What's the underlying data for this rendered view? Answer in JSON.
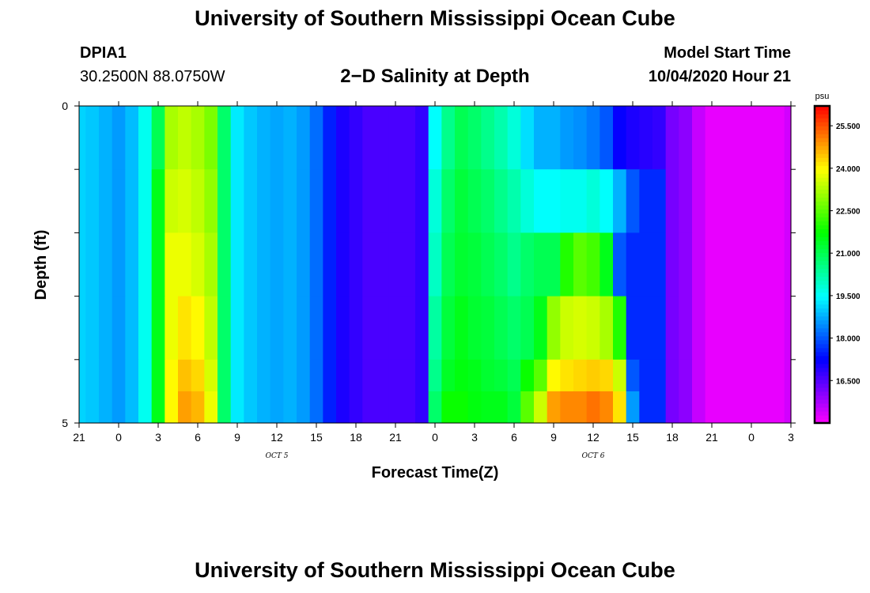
{
  "header": {
    "title": "University of Southern Mississippi Ocean Cube",
    "station_id": "DPIA1",
    "station_coords": "30.2500N 88.0750W",
    "model_start_label": "Model Start Time",
    "model_start_value": "10/04/2020 Hour 21"
  },
  "footer": {
    "title": "University of Southern Mississippi Ocean Cube"
  },
  "chart_data": {
    "type": "heatmap",
    "title": "2−D Salinity at Depth",
    "xlabel": "Forecast Time(Z)",
    "ylabel": "Depth (ft)",
    "xlim": [
      0,
      54
    ],
    "ylim": [
      0,
      5
    ],
    "x_ticks": [
      0,
      3,
      6,
      9,
      12,
      15,
      18,
      21,
      24,
      27,
      30,
      33,
      36,
      39,
      42,
      45,
      48,
      51,
      54
    ],
    "x_tick_labels": [
      "21",
      "0",
      "3",
      "6",
      "9",
      "12",
      "15",
      "18",
      "21",
      "0",
      "3",
      "6",
      "9",
      "12",
      "15",
      "18",
      "21",
      "0",
      "3"
    ],
    "day_labels": [
      {
        "x": 15,
        "text": "OCT 5"
      },
      {
        "x": 39,
        "text": "OCT 6"
      }
    ],
    "y_ticks": [
      0,
      1,
      2,
      3,
      4,
      5
    ],
    "y_tick_labels": [
      "0",
      "",
      "",
      "",
      "",
      "5"
    ],
    "colorbar": {
      "unit": "psu",
      "min": 15.0,
      "max": 26.2,
      "tick_values": [
        16.5,
        18.0,
        19.5,
        21.0,
        22.5,
        24.0,
        25.5
      ],
      "tick_labels": [
        "16.500",
        "18.000",
        "19.500",
        "21.000",
        "22.500",
        "24.000",
        "25.500"
      ]
    },
    "x": [
      0,
      1,
      2,
      3,
      4,
      5,
      6,
      7,
      8,
      9,
      10,
      11,
      12,
      13,
      14,
      15,
      16,
      17,
      18,
      19,
      20,
      21,
      22,
      23,
      24,
      25,
      26,
      27,
      28,
      29,
      30,
      31,
      32,
      33,
      34,
      35,
      36,
      37,
      38,
      39,
      40,
      41,
      42,
      43,
      44,
      45,
      46,
      47,
      48,
      49,
      50,
      51,
      52,
      53,
      54
    ],
    "layers": [
      {
        "depth_top": 0,
        "depth_bottom": 1,
        "values": [
          19.1,
          19.0,
          18.8,
          18.6,
          18.9,
          19.6,
          21.0,
          23.2,
          23.4,
          23.2,
          22.8,
          20.8,
          19.3,
          19.0,
          18.8,
          18.7,
          18.8,
          18.6,
          18.2,
          17.5,
          17.0,
          16.8,
          16.6,
          16.6,
          16.6,
          16.6,
          16.8,
          19.5,
          20.5,
          21.0,
          20.8,
          20.5,
          20.2,
          19.8,
          19.2,
          18.8,
          18.8,
          18.6,
          18.5,
          18.3,
          18.0,
          17.2,
          17.0,
          16.9,
          16.8,
          16.2,
          16.0,
          15.5,
          15.2,
          15.2,
          15.2,
          15.2,
          15.2,
          15.2,
          15.4
        ]
      },
      {
        "depth_top": 1,
        "depth_bottom": 2,
        "values": [
          19.1,
          19.0,
          18.8,
          18.6,
          18.9,
          19.6,
          21.5,
          23.5,
          23.6,
          23.4,
          23.0,
          20.8,
          19.3,
          19.0,
          18.8,
          18.7,
          18.8,
          18.6,
          18.2,
          17.5,
          17.0,
          16.8,
          16.6,
          16.6,
          16.6,
          16.6,
          16.8,
          19.8,
          20.8,
          21.2,
          21.0,
          20.8,
          20.5,
          20.2,
          19.8,
          19.5,
          19.5,
          19.6,
          19.6,
          19.8,
          19.5,
          18.8,
          18.0,
          17.6,
          17.6,
          16.2,
          16.0,
          15.5,
          15.2,
          15.2,
          15.2,
          15.2,
          15.2,
          15.2,
          15.4
        ]
      },
      {
        "depth_top": 2,
        "depth_bottom": 3,
        "values": [
          19.1,
          19.0,
          18.8,
          18.6,
          18.9,
          19.6,
          21.5,
          23.8,
          23.8,
          23.6,
          23.2,
          20.8,
          19.3,
          19.0,
          18.8,
          18.7,
          18.8,
          18.6,
          18.2,
          17.5,
          17.0,
          16.8,
          16.6,
          16.6,
          16.6,
          16.6,
          16.8,
          20.0,
          21.0,
          21.3,
          21.2,
          21.0,
          20.8,
          20.5,
          20.8,
          21.0,
          21.0,
          22.0,
          22.5,
          22.3,
          21.5,
          18.0,
          17.6,
          17.6,
          17.6,
          16.2,
          16.0,
          15.5,
          15.2,
          15.2,
          15.2,
          15.2,
          15.2,
          15.2,
          15.4
        ]
      },
      {
        "depth_top": 3,
        "depth_bottom": 4,
        "values": [
          19.1,
          19.0,
          18.8,
          18.6,
          18.9,
          19.6,
          21.5,
          23.8,
          24.2,
          24.0,
          23.4,
          20.8,
          19.3,
          19.0,
          18.8,
          18.7,
          18.8,
          18.6,
          18.2,
          17.5,
          17.0,
          16.8,
          16.6,
          16.6,
          16.6,
          16.6,
          16.8,
          20.3,
          21.2,
          21.5,
          21.3,
          21.2,
          21.0,
          20.8,
          21.0,
          21.5,
          23.0,
          23.5,
          23.6,
          23.5,
          23.2,
          22.0,
          17.6,
          17.6,
          17.6,
          16.2,
          16.0,
          15.5,
          15.2,
          15.2,
          15.2,
          15.2,
          15.2,
          15.2,
          15.4
        ]
      },
      {
        "depth_top": 4,
        "depth_bottom": 4.5,
        "values": [
          19.1,
          19.0,
          18.8,
          18.6,
          18.9,
          19.6,
          21.5,
          24.0,
          24.5,
          24.3,
          23.6,
          20.8,
          19.3,
          19.0,
          18.8,
          18.7,
          18.8,
          18.6,
          18.2,
          17.5,
          17.0,
          16.8,
          16.6,
          16.6,
          16.6,
          16.6,
          16.8,
          20.5,
          21.4,
          21.6,
          21.5,
          21.3,
          21.2,
          21.0,
          21.8,
          22.5,
          24.0,
          24.2,
          24.3,
          24.4,
          24.3,
          23.5,
          18.0,
          17.6,
          17.6,
          16.2,
          16.0,
          15.5,
          15.2,
          15.2,
          15.2,
          15.2,
          15.2,
          15.2,
          15.4
        ]
      },
      {
        "depth_top": 4.5,
        "depth_bottom": 5,
        "values": [
          19.1,
          19.0,
          18.8,
          18.6,
          18.9,
          19.6,
          21.5,
          24.0,
          24.8,
          24.6,
          23.8,
          20.8,
          19.3,
          19.0,
          18.8,
          18.7,
          18.8,
          18.6,
          18.2,
          17.5,
          17.0,
          16.8,
          16.6,
          16.6,
          16.6,
          16.6,
          16.8,
          20.8,
          21.8,
          21.8,
          21.6,
          21.5,
          21.5,
          21.2,
          22.5,
          23.5,
          24.8,
          25.0,
          25.0,
          25.2,
          25.0,
          24.2,
          18.6,
          17.6,
          17.6,
          16.2,
          16.0,
          15.5,
          15.2,
          15.2,
          15.2,
          15.2,
          15.2,
          15.2,
          15.4
        ]
      }
    ]
  }
}
